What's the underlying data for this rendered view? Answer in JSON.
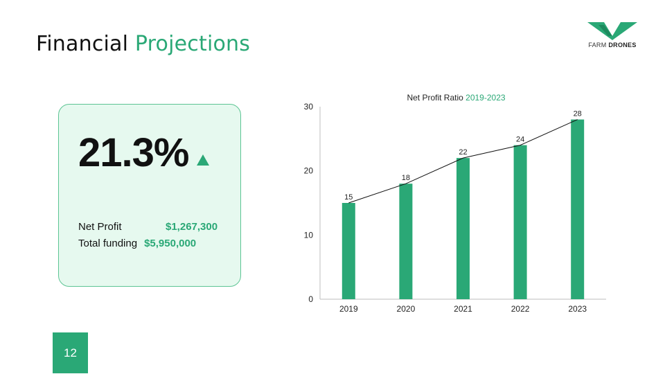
{
  "slide": {
    "title_part1": "Financial",
    "title_part2": "Projections",
    "logo_light": "FARM",
    "logo_bold": "DRONES",
    "page_number": "12",
    "accent_color": "#2aa876"
  },
  "card": {
    "big_value": "21.3%",
    "trend_icon": "up-triangle-icon",
    "net_profit_label": "Net Profit",
    "net_profit_value": "$1,267,300",
    "funding_label": "Total funding",
    "funding_value": "$5,950,000"
  },
  "chart_data": {
    "type": "bar",
    "title": "Net Profit Ratio",
    "title_highlight": "2019-2023",
    "categories": [
      "2019",
      "2020",
      "2021",
      "2022",
      "2023"
    ],
    "values": [
      15,
      18,
      22,
      24,
      28
    ],
    "ylim": [
      0,
      30
    ],
    "yticks": [
      0,
      10,
      20,
      30
    ],
    "overlay_line": true,
    "grid": false,
    "bar_color": "#2aa876",
    "line_color": "#111111"
  }
}
